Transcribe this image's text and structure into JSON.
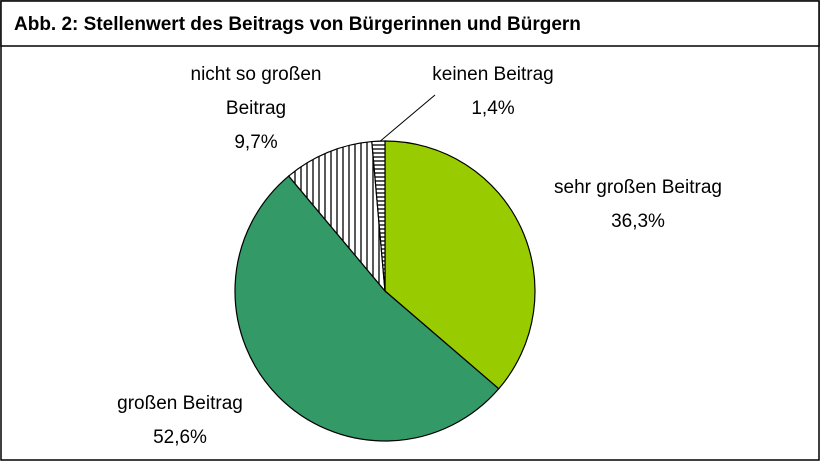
{
  "chart_data": {
    "type": "pie",
    "title": "Abb. 2: Stellenwert des Beitrags von Bürgerinnen und Bürgern",
    "categories": [
      "sehr großen Beitrag",
      "großen Beitrag",
      "nicht so großen Beitrag",
      "keinen Beitrag"
    ],
    "values": [
      36.3,
      52.6,
      9.7,
      1.4
    ],
    "value_labels": [
      "36,3%",
      "52,6%",
      "9,7%",
      "1,4%"
    ],
    "colors": [
      "#99cc00",
      "#339966",
      "vertical-stripes",
      "horizontal-stripes"
    ]
  }
}
